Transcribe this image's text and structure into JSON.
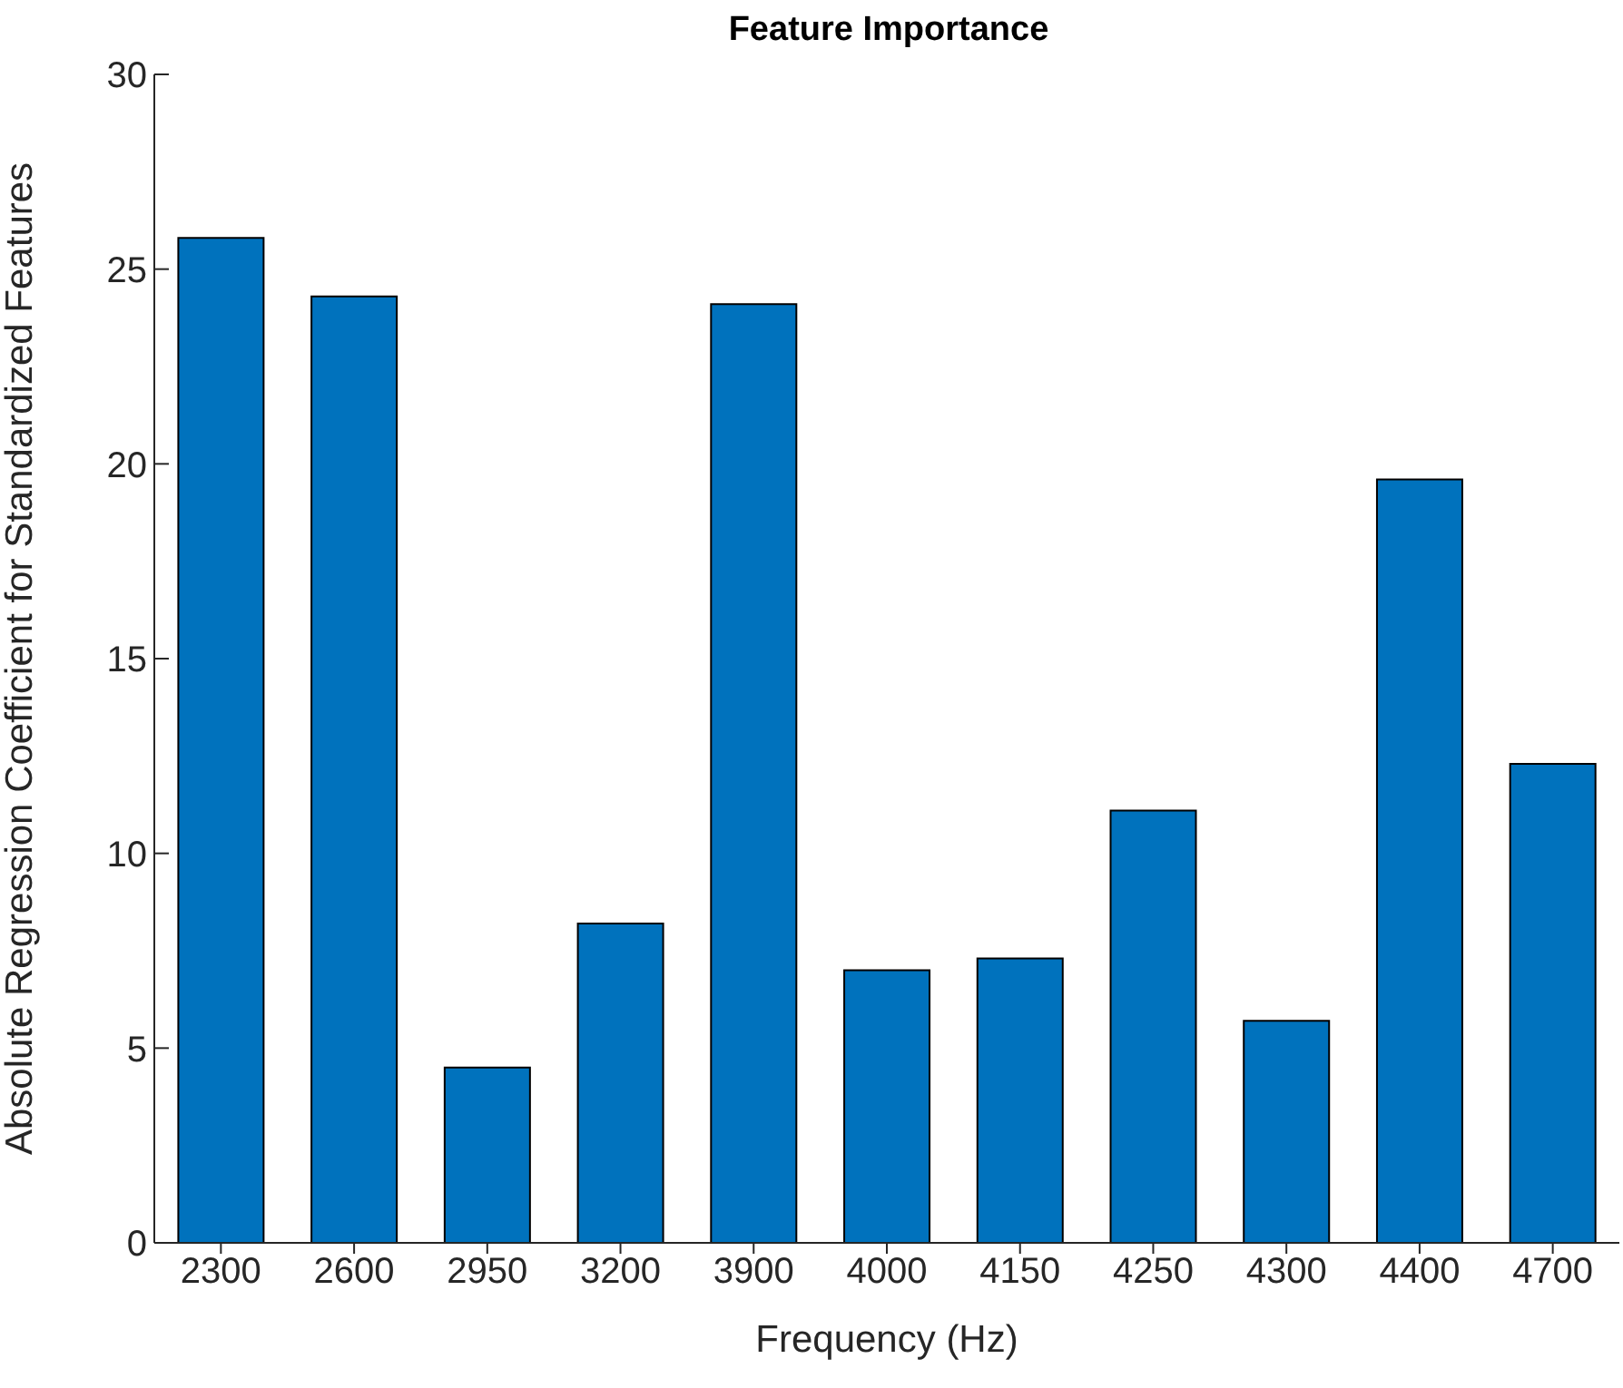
{
  "chart_data": {
    "type": "bar",
    "title": "Feature Importance",
    "xlabel": "Frequency (Hz)",
    "ylabel": "Absolute Regression Coefficient for Standardized Features",
    "categories": [
      "2300",
      "2600",
      "2950",
      "3200",
      "3900",
      "4000",
      "4150",
      "4250",
      "4300",
      "4400",
      "4700"
    ],
    "values": [
      25.8,
      24.3,
      4.5,
      8.2,
      24.1,
      7.0,
      7.3,
      11.1,
      5.7,
      19.6,
      12.3
    ],
    "color": "#0072bd",
    "ylim": [
      0,
      30
    ],
    "yticks": [
      0,
      5,
      10,
      15,
      20,
      25,
      30
    ],
    "grid": false,
    "legend": false
  }
}
